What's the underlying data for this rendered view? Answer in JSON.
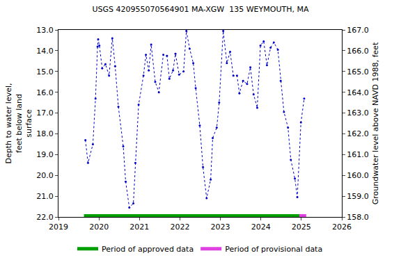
{
  "chart_data": {
    "type": "line",
    "title": "USGS 420955070564901 MA-XGW  135 WEYMOUTH, MA",
    "x_label": "",
    "y_label": "Depth to water level, feet below land surface",
    "y2_label": "Groundwater level above NAVD 1988, feet",
    "x": [
      2019.665,
      2019.73,
      2019.85,
      2019.915,
      2019.965,
      2019.98,
      2020.01,
      2020.08,
      2020.16,
      2020.25,
      2020.33,
      2020.4,
      2020.48,
      2020.6,
      2020.66,
      2020.75,
      2020.85,
      2020.9,
      2020.98,
      2021.1,
      2021.16,
      2021.23,
      2021.29,
      2021.39,
      2021.48,
      2021.59,
      2021.68,
      2021.74,
      2021.83,
      2021.89,
      2021.98,
      2022.09,
      2022.16,
      2022.24,
      2022.33,
      2022.39,
      2022.49,
      2022.57,
      2022.66,
      2022.76,
      2022.81,
      2022.91,
      2022.97,
      2023.07,
      2023.16,
      2023.24,
      2023.32,
      2023.41,
      2023.47,
      2023.56,
      2023.66,
      2023.74,
      2023.82,
      2023.91,
      2023.99,
      2024.07,
      2024.15,
      2024.24,
      2024.32,
      2024.42,
      2024.49,
      2024.57,
      2024.67,
      2024.74,
      2024.84,
      2024.9,
      2024.99,
      2025.07
    ],
    "series": [
      {
        "color": "#0000cc",
        "marker": "circle",
        "line_style": "dotted",
        "values": [
          18.3,
          19.4,
          18.5,
          16.3,
          13.8,
          13.45,
          13.75,
          14.85,
          14.65,
          15.2,
          13.4,
          14.75,
          16.7,
          18.6,
          20.3,
          21.55,
          21.35,
          19.4,
          16.6,
          15.2,
          14.2,
          14.95,
          13.7,
          15.5,
          16.0,
          14.2,
          14.25,
          15.35,
          14.95,
          14.15,
          15.15,
          15.0,
          13.05,
          13.9,
          14.6,
          15.8,
          17.6,
          19.6,
          21.1,
          20.2,
          18.2,
          17.7,
          16.5,
          13.05,
          14.6,
          14.05,
          15.2,
          15.2,
          16.05,
          15.45,
          15.6,
          14.8,
          16.1,
          16.75,
          13.75,
          13.55,
          14.7,
          13.85,
          13.6,
          13.95,
          15.45,
          16.95,
          17.7,
          19.25,
          20.15,
          21.05,
          17.45,
          16.3
        ]
      },
      {
        "name": "Period of approved data",
        "color": "#00a000",
        "line_style": "solid",
        "x": [
          2019.63,
          2024.95
        ],
        "values": [
          21.95,
          21.95
        ]
      },
      {
        "name": "Period of provisional data",
        "color": "#e040e0",
        "line_style": "solid",
        "x": [
          2024.95,
          2025.12
        ],
        "values": [
          21.95,
          21.95
        ]
      }
    ],
    "xlim": [
      2019,
      2026
    ],
    "xticks": [
      2019,
      2020,
      2021,
      2022,
      2023,
      2024,
      2025,
      2026
    ],
    "ylim": [
      22,
      13
    ],
    "yticks": [
      {
        "value": 13,
        "label": "13.0"
      },
      {
        "value": 14,
        "label": "14.0"
      },
      {
        "value": 15,
        "label": "15.0"
      },
      {
        "value": 16,
        "label": "16.0"
      },
      {
        "value": 17,
        "label": "17.0"
      },
      {
        "value": 18,
        "label": "18.0"
      },
      {
        "value": 19,
        "label": "19.0"
      },
      {
        "value": 20,
        "label": "20.0"
      },
      {
        "value": 21,
        "label": "21.0"
      },
      {
        "value": 22,
        "label": "22.0"
      }
    ],
    "y2lim": [
      158,
      167
    ],
    "y2ticks": [
      {
        "value": 158,
        "label": "158.0"
      },
      {
        "value": 159,
        "label": "159.0"
      },
      {
        "value": 160,
        "label": "160.0"
      },
      {
        "value": 161,
        "label": "161.0"
      },
      {
        "value": 162,
        "label": "162.0"
      },
      {
        "value": 163,
        "label": "163.0"
      },
      {
        "value": 164,
        "label": "164.0"
      },
      {
        "value": 165,
        "label": "165.0"
      },
      {
        "value": 166,
        "label": "166.0"
      },
      {
        "value": 167,
        "label": "167.0"
      }
    ],
    "grid": false,
    "legend": "bottom"
  }
}
